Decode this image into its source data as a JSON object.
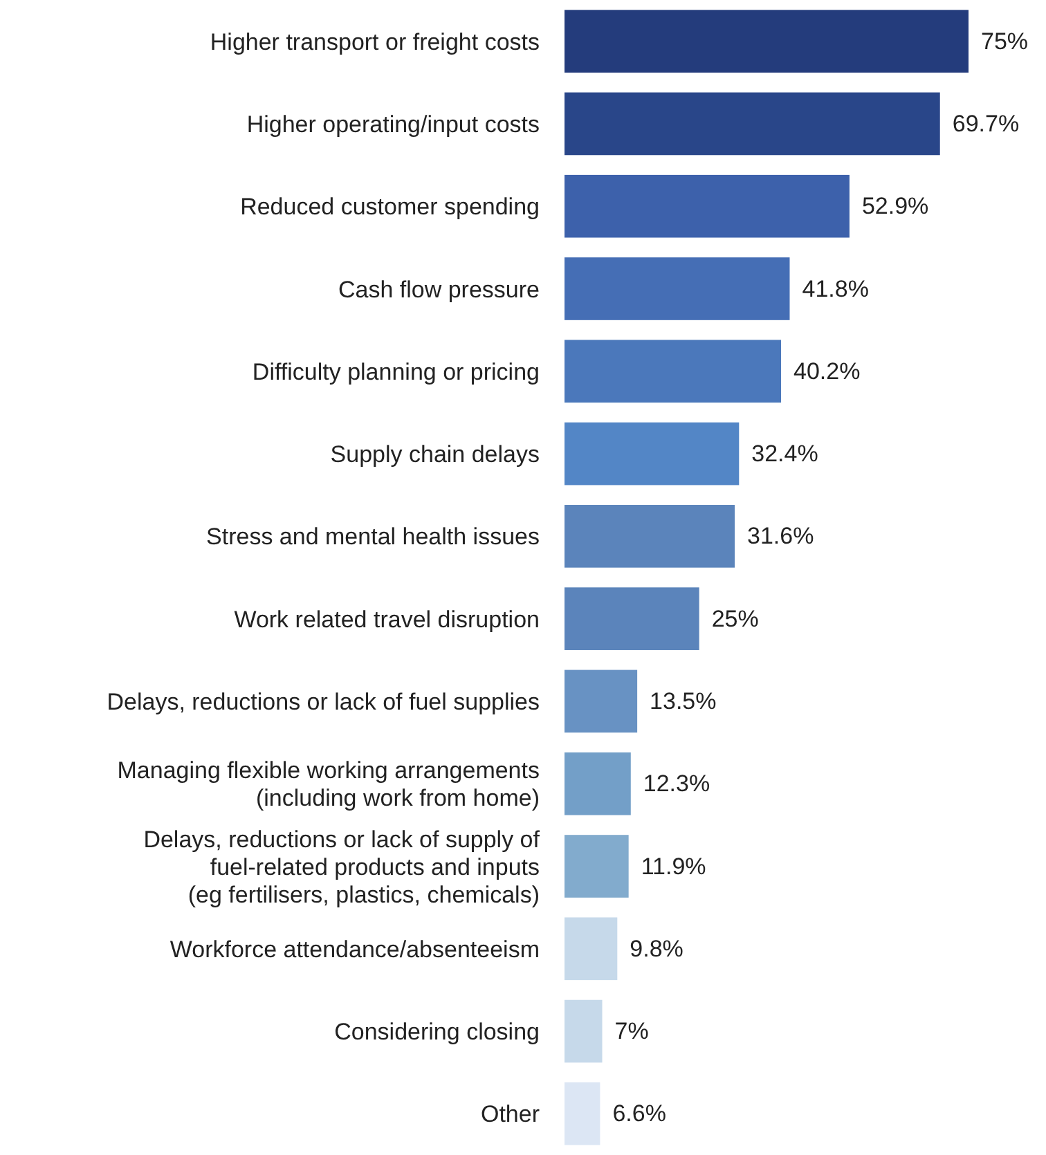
{
  "chart_data": {
    "type": "bar",
    "orientation": "horizontal",
    "categories": [
      "Higher transport or freight costs",
      "Higher operating/input costs",
      "Reduced customer spending",
      "Cash flow pressure",
      "Difficulty planning or pricing",
      "Supply chain delays",
      "Stress and mental health issues",
      "Work related travel disruption",
      "Delays, reductions or lack of fuel supplies",
      "Managing flexible working arrangements\n(including work from home)",
      "Delays, reductions or lack of supply of\nfuel-related products and inputs\n(eg fertilisers, plastics, chemicals)",
      "Workforce attendance/absenteeism",
      "Considering closing",
      "Other"
    ],
    "values": [
      75,
      69.7,
      52.9,
      41.8,
      40.2,
      32.4,
      31.6,
      25,
      13.5,
      12.3,
      11.9,
      9.8,
      7,
      6.6
    ],
    "colors": [
      "#243c7c",
      "#294689",
      "#3d61ab",
      "#456eb5",
      "#4b78bb",
      "#5386c6",
      "#5b84bb",
      "#5b84bb",
      "#6892c3",
      "#739fc8",
      "#82abcd",
      "#c6d9ea",
      "#c6d9ea",
      "#dce6f4"
    ],
    "value_labels": [
      "75%",
      "69.7%",
      "52.9%",
      "41.8%",
      "40.2%",
      "32.4%",
      "31.6%",
      "25%",
      "13.5%",
      "12.3%",
      "11.9%",
      "9.8%",
      "7%",
      "6.6%"
    ]
  }
}
